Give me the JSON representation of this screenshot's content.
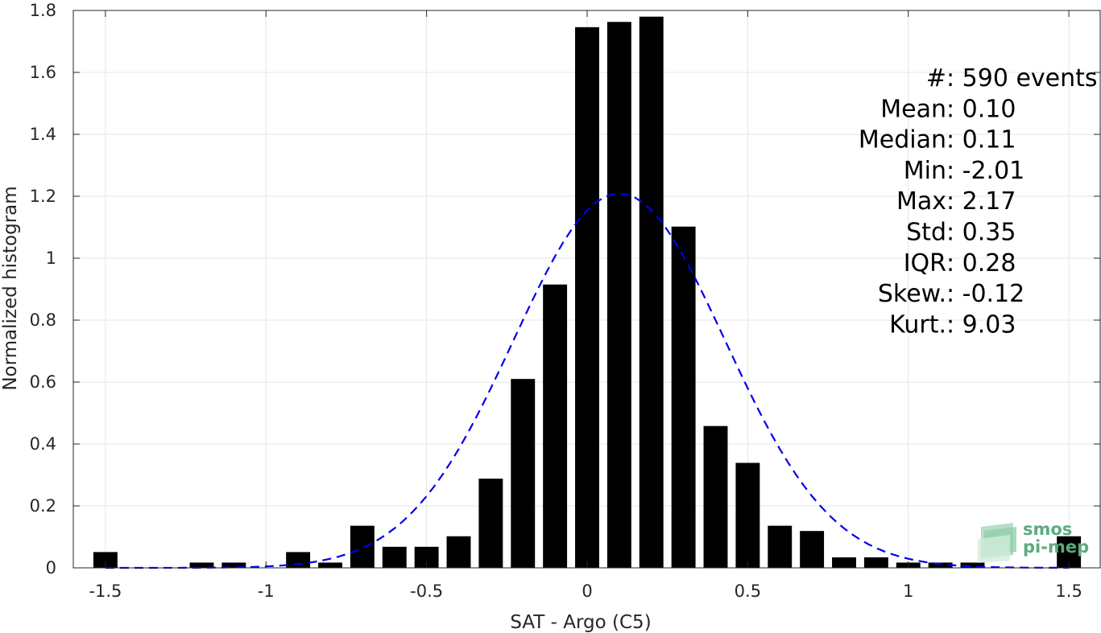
{
  "chart_data": {
    "type": "bar",
    "xlabel": "SAT - Argo (C5)",
    "ylabel": "Normalized histogram",
    "xlim": [
      -1.6,
      1.6
    ],
    "ylim": [
      0,
      1.8
    ],
    "grid": true,
    "bar_color": "#000000",
    "fit_color": "#0000ee",
    "xticks": [
      {
        "value": -1.5,
        "label": "-1.5"
      },
      {
        "value": -1,
        "label": "-1"
      },
      {
        "value": -0.5,
        "label": "-0.5"
      },
      {
        "value": 0,
        "label": "0"
      },
      {
        "value": 0.5,
        "label": "0.5"
      },
      {
        "value": 1,
        "label": "1"
      },
      {
        "value": 1.5,
        "label": "1.5"
      }
    ],
    "yticks": [
      {
        "value": 0,
        "label": "0"
      },
      {
        "value": 0.2,
        "label": "0.2"
      },
      {
        "value": 0.4,
        "label": "0.4"
      },
      {
        "value": 0.6,
        "label": "0.6"
      },
      {
        "value": 0.8,
        "label": "0.8"
      },
      {
        "value": 1,
        "label": "1"
      },
      {
        "value": 1.2,
        "label": "1.2"
      },
      {
        "value": 1.4,
        "label": "1.4"
      },
      {
        "value": 1.6,
        "label": "1.6"
      },
      {
        "value": 1.8,
        "label": "1.8"
      }
    ],
    "bin_width": 0.1,
    "bins": [
      {
        "x": -1.5,
        "y": 0.051
      },
      {
        "x": -1.4,
        "y": 0
      },
      {
        "x": -1.3,
        "y": 0
      },
      {
        "x": -1.2,
        "y": 0.017
      },
      {
        "x": -1.1,
        "y": 0.017
      },
      {
        "x": -1.0,
        "y": 0
      },
      {
        "x": -0.9,
        "y": 0.051
      },
      {
        "x": -0.8,
        "y": 0.017
      },
      {
        "x": -0.7,
        "y": 0.136
      },
      {
        "x": -0.6,
        "y": 0.068
      },
      {
        "x": -0.5,
        "y": 0.068
      },
      {
        "x": -0.4,
        "y": 0.102
      },
      {
        "x": -0.3,
        "y": 0.288
      },
      {
        "x": -0.2,
        "y": 0.61
      },
      {
        "x": -0.1,
        "y": 0.915
      },
      {
        "x": 0.0,
        "y": 1.746
      },
      {
        "x": 0.1,
        "y": 1.763
      },
      {
        "x": 0.2,
        "y": 1.78
      },
      {
        "x": 0.3,
        "y": 1.102
      },
      {
        "x": 0.4,
        "y": 0.458
      },
      {
        "x": 0.5,
        "y": 0.339
      },
      {
        "x": 0.6,
        "y": 0.136
      },
      {
        "x": 0.7,
        "y": 0.119
      },
      {
        "x": 0.8,
        "y": 0.034
      },
      {
        "x": 0.9,
        "y": 0.034
      },
      {
        "x": 1.0,
        "y": 0.017
      },
      {
        "x": 1.1,
        "y": 0.017
      },
      {
        "x": 1.2,
        "y": 0.017
      },
      {
        "x": 1.3,
        "y": 0
      },
      {
        "x": 1.4,
        "y": 0
      },
      {
        "x": 1.5,
        "y": 0.102
      }
    ],
    "fit_curve": {
      "style": "dashed",
      "mean": 0.1,
      "std": 0.33,
      "x_range": [
        -1.5,
        1.5
      ]
    },
    "stats": [
      {
        "label": "#  ",
        "value": ": 590 events"
      },
      {
        "label": "Mean ",
        "value": ": 0.10"
      },
      {
        "label": "Median ",
        "value": ": 0.11"
      },
      {
        "label": "Min ",
        "value": ": -2.01"
      },
      {
        "label": "Max ",
        "value": ": 2.17"
      },
      {
        "label": "Std ",
        "value": ": 0.35"
      },
      {
        "label": "IQR ",
        "value": ": 0.28"
      },
      {
        "label": "Skew. ",
        "value": ": -0.12"
      },
      {
        "label": "Kurt. ",
        "value": ": 9.03"
      }
    ]
  },
  "logo": {
    "line1": "smos",
    "line2": "pi-mep",
    "color": "#5aab7d"
  }
}
